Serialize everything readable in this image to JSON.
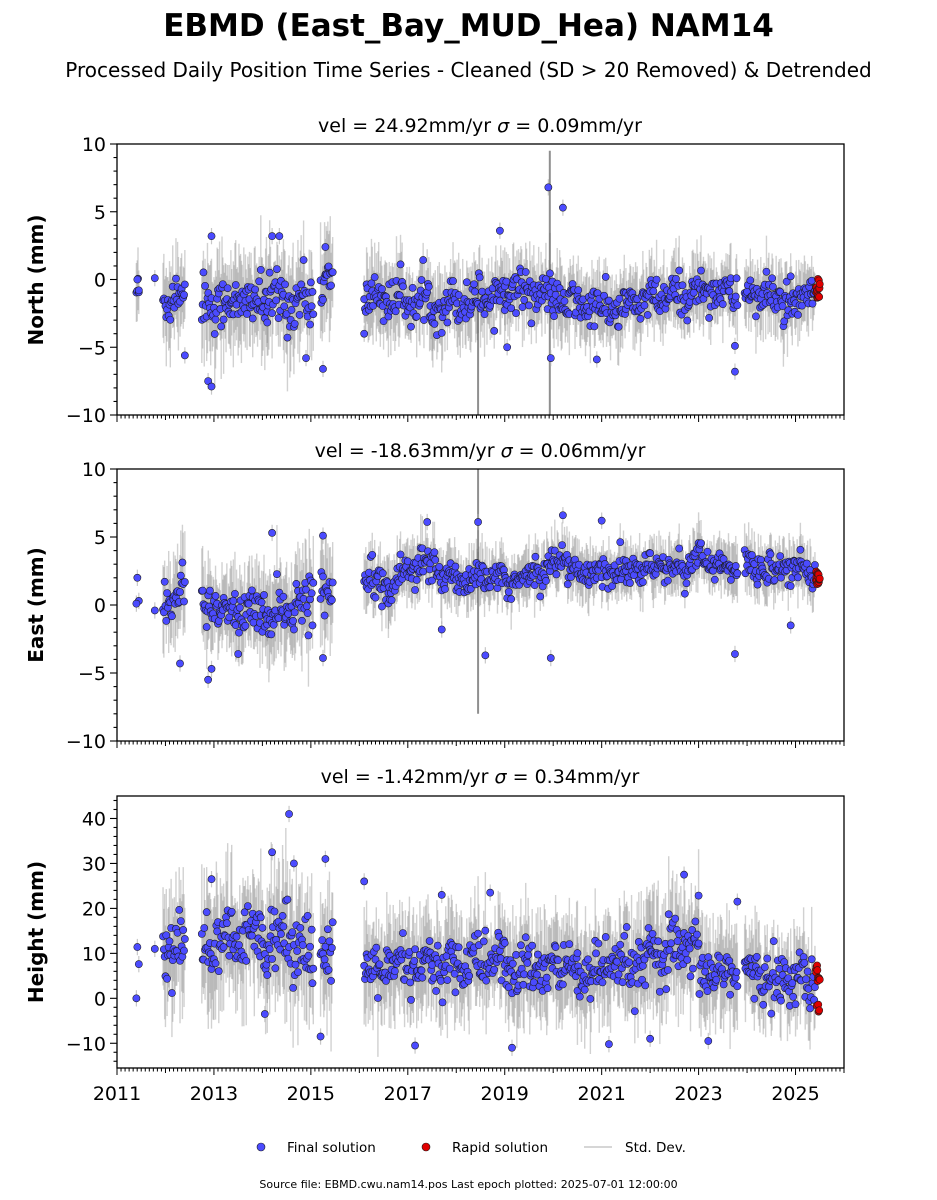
{
  "title": "EBMD (East_Bay_MUD_Hea) NAM14",
  "subtitle": "Processed Daily Position Time Series - Cleaned (SD > 20 Removed) & Detrended",
  "footer": "Source file: EBMD.cwu.nam14.pos  Last epoch plotted: 2025-07-01 12:00:00",
  "legend": {
    "final": "Final solution",
    "rapid": "Rapid solution",
    "sd": "Std. Dev."
  },
  "colors": {
    "final": "#4b4bff",
    "rapid": "#e00000",
    "sd": "#b0b0b0",
    "edge": "#1a1a1a"
  },
  "chart_data": [
    {
      "type": "scatter",
      "panel": "north",
      "title_lhs": "vel = 24.92mm/yr",
      "title_rhs": "= 0.09mm/yr",
      "sigma": "σ",
      "ylabel": "North (mm)",
      "xlim": [
        2011,
        2026
      ],
      "ylim": [
        -10,
        10
      ],
      "yticks": [
        -10,
        -5,
        0,
        5,
        10
      ],
      "ytick_labels": [
        "−10",
        "−5",
        "0",
        "5",
        "10"
      ],
      "xticks": [
        2011,
        2013,
        2015,
        2017,
        2019,
        2021,
        2023,
        2025
      ],
      "xtick_labels": [
        "2011",
        "2013",
        "2015",
        "2017",
        "2019",
        "2021",
        "2023",
        "2025"
      ],
      "segments": [
        {
          "x": [
            2011.4,
            2011.45
          ],
          "mean": [
            -0.7,
            -0.7
          ],
          "spread": 1.2
        },
        {
          "x": [
            2011.95,
            2012.4
          ],
          "mean": [
            -1.5,
            -1.0
          ],
          "spread": 1.6
        },
        {
          "x": [
            2012.75,
            2014.1
          ],
          "mean": [
            -1.8,
            -1.6
          ],
          "spread": 1.7
        },
        {
          "x": [
            2014.1,
            2015.05
          ],
          "mean": [
            -1.6,
            -1.5
          ],
          "spread": 1.8
        },
        {
          "x": [
            2015.2,
            2015.45
          ],
          "mean": [
            -0.4,
            -0.8
          ],
          "spread": 1.9
        },
        {
          "x": [
            2016.1,
            2017.5
          ],
          "mean": [
            -1.2,
            -1.8
          ],
          "spread": 1.4
        },
        {
          "x": [
            2017.5,
            2019.0
          ],
          "mean": [
            -2.0,
            -1.0
          ],
          "spread": 1.4
        },
        {
          "x": [
            2019.0,
            2020.0
          ],
          "mean": [
            -0.5,
            -1.2
          ],
          "spread": 1.3
        },
        {
          "x": [
            2020.0,
            2021.5
          ],
          "mean": [
            -1.6,
            -2.4
          ],
          "spread": 1.3
        },
        {
          "x": [
            2021.5,
            2023.1
          ],
          "mean": [
            -1.8,
            -0.9
          ],
          "spread": 1.3
        },
        {
          "x": [
            2023.1,
            2023.8
          ],
          "mean": [
            -0.6,
            -1.2
          ],
          "spread": 1.2
        },
        {
          "x": [
            2023.95,
            2024.9
          ],
          "mean": [
            -1.0,
            -1.6
          ],
          "spread": 1.3
        },
        {
          "x": [
            2024.9,
            2025.4
          ],
          "mean": [
            -2.4,
            -0.6
          ],
          "spread": 1.1
        }
      ],
      "outliers": [
        {
          "x": 2019.9,
          "y": 6.8
        },
        {
          "x": 2020.2,
          "y": 5.3
        },
        {
          "x": 2018.9,
          "y": 3.6
        },
        {
          "x": 2012.95,
          "y": 3.2
        },
        {
          "x": 2014.2,
          "y": 3.2
        },
        {
          "x": 2014.35,
          "y": 3.2
        },
        {
          "x": 2015.3,
          "y": 2.4
        },
        {
          "x": 2012.88,
          "y": -7.5
        },
        {
          "x": 2012.95,
          "y": -7.9
        },
        {
          "x": 2015.25,
          "y": -6.6
        },
        {
          "x": 2023.75,
          "y": -6.8
        },
        {
          "x": 2019.95,
          "y": -5.8
        },
        {
          "x": 2012.4,
          "y": -5.6
        },
        {
          "x": 2011.78,
          "y": 0.1
        },
        {
          "x": 2011.42,
          "y": 0.0
        },
        {
          "x": 2011.45,
          "y": -0.8
        },
        {
          "x": 2020.9,
          "y": -5.9
        },
        {
          "x": 2019.05,
          "y": -5.0
        },
        {
          "x": 2023.75,
          "y": -4.9
        },
        {
          "x": 2016.1,
          "y": -4.0
        },
        {
          "x": 2014.9,
          "y": -5.8
        }
      ],
      "rapid": {
        "x_start": 2025.42,
        "x_end": 2025.5,
        "y_min": -1.4,
        "y_max": 0.2
      },
      "gap_sd_spikes": [
        {
          "x": 2018.45,
          "low": -10,
          "high": 0.5
        },
        {
          "x": 2019.93,
          "low": -10,
          "high": 9.5
        }
      ]
    },
    {
      "type": "scatter",
      "panel": "east",
      "title_lhs": "vel = -18.63mm/yr",
      "title_rhs": "= 0.06mm/yr",
      "sigma": "σ",
      "ylabel": "East (mm)",
      "xlim": [
        2011,
        2026
      ],
      "ylim": [
        -10,
        10
      ],
      "yticks": [
        -10,
        -5,
        0,
        5,
        10
      ],
      "ytick_labels": [
        "−10",
        "−5",
        "0",
        "5",
        "10"
      ],
      "xticks": [
        2011,
        2013,
        2015,
        2017,
        2019,
        2021,
        2023,
        2025
      ],
      "xtick_labels": [
        "2011",
        "2013",
        "2015",
        "2017",
        "2019",
        "2021",
        "2023",
        "2025"
      ],
      "segments": [
        {
          "x": [
            2011.95,
            2012.4
          ],
          "mean": [
            -0.3,
            1.2
          ],
          "spread": 1.6
        },
        {
          "x": [
            2012.75,
            2014.1
          ],
          "mean": [
            -0.4,
            -0.6
          ],
          "spread": 1.4
        },
        {
          "x": [
            2014.1,
            2015.05
          ],
          "mean": [
            -0.8,
            0.4
          ],
          "spread": 1.6
        },
        {
          "x": [
            2015.2,
            2015.45
          ],
          "mean": [
            1.0,
            0.8
          ],
          "spread": 1.7
        },
        {
          "x": [
            2016.1,
            2016.6
          ],
          "mean": [
            2.5,
            1.6
          ],
          "spread": 1.1
        },
        {
          "x": [
            2016.6,
            2017.2
          ],
          "mean": [
            1.2,
            3.2
          ],
          "spread": 1.1
        },
        {
          "x": [
            2017.2,
            2018.0
          ],
          "mean": [
            3.0,
            2.0
          ],
          "spread": 1.1
        },
        {
          "x": [
            2018.0,
            2019.5
          ],
          "mean": [
            2.0,
            1.8
          ],
          "spread": 1.0
        },
        {
          "x": [
            2019.5,
            2020.3
          ],
          "mean": [
            2.2,
            3.6
          ],
          "spread": 1.0
        },
        {
          "x": [
            2020.3,
            2021.5
          ],
          "mean": [
            2.4,
            2.6
          ],
          "spread": 1.0
        },
        {
          "x": [
            2021.5,
            2022.8
          ],
          "mean": [
            2.6,
            2.8
          ],
          "spread": 1.0
        },
        {
          "x": [
            2022.8,
            2023.8
          ],
          "mean": [
            3.6,
            2.4
          ],
          "spread": 1.0
        },
        {
          "x": [
            2023.95,
            2025.4
          ],
          "mean": [
            2.8,
            2.6
          ],
          "spread": 1.0
        }
      ],
      "outliers": [
        {
          "x": 2020.2,
          "y": 6.6
        },
        {
          "x": 2021.0,
          "y": 6.2
        },
        {
          "x": 2018.45,
          "y": 6.1
        },
        {
          "x": 2017.4,
          "y": 6.1
        },
        {
          "x": 2014.2,
          "y": 5.3
        },
        {
          "x": 2015.25,
          "y": 5.1
        },
        {
          "x": 2011.42,
          "y": 2.0
        },
        {
          "x": 2011.45,
          "y": 0.3
        },
        {
          "x": 2011.4,
          "y": 0.1
        },
        {
          "x": 2011.78,
          "y": -0.4
        },
        {
          "x": 2012.88,
          "y": -5.5
        },
        {
          "x": 2012.95,
          "y": -4.7
        },
        {
          "x": 2012.3,
          "y": -4.3
        },
        {
          "x": 2018.6,
          "y": -3.7
        },
        {
          "x": 2019.95,
          "y": -3.9
        },
        {
          "x": 2023.75,
          "y": -3.6
        },
        {
          "x": 2015.25,
          "y": -3.9
        },
        {
          "x": 2017.7,
          "y": -1.8
        },
        {
          "x": 2024.9,
          "y": -1.5
        },
        {
          "x": 2013.5,
          "y": -3.6
        }
      ],
      "rapid": {
        "x_start": 2025.42,
        "x_end": 2025.5,
        "y_min": 1.5,
        "y_max": 2.5
      },
      "gap_sd_spikes": [
        {
          "x": 2018.45,
          "low": -8,
          "high": 10
        }
      ]
    },
    {
      "type": "scatter",
      "panel": "height",
      "title_lhs": "vel = -1.42mm/yr",
      "title_rhs": "= 0.34mm/yr",
      "sigma": "σ",
      "ylabel": "Height (mm)",
      "xlim": [
        2011,
        2026
      ],
      "ylim": [
        -15.5,
        45
      ],
      "yticks": [
        -10,
        0,
        10,
        20,
        30,
        40
      ],
      "ytick_labels": [
        "−10",
        "0",
        "10",
        "20",
        "30",
        "40"
      ],
      "xticks": [
        2011,
        2013,
        2015,
        2017,
        2019,
        2021,
        2023,
        2025
      ],
      "xtick_labels": [
        "2011",
        "2013",
        "2015",
        "2017",
        "2019",
        "2021",
        "2023",
        "2025"
      ],
      "segments": [
        {
          "x": [
            2011.95,
            2012.4
          ],
          "mean": [
            12.0,
            10.0
          ],
          "spread": 6.0
        },
        {
          "x": [
            2012.75,
            2014.1
          ],
          "mean": [
            11.0,
            14.0
          ],
          "spread": 6.5
        },
        {
          "x": [
            2014.1,
            2015.05
          ],
          "mean": [
            15.0,
            11.0
          ],
          "spread": 7.0
        },
        {
          "x": [
            2015.2,
            2015.45
          ],
          "mean": [
            9.0,
            6.0
          ],
          "spread": 7.0
        },
        {
          "x": [
            2016.1,
            2017.5
          ],
          "mean": [
            6.0,
            7.0
          ],
          "spread": 5.5
        },
        {
          "x": [
            2017.5,
            2019.0
          ],
          "mean": [
            7.0,
            9.0
          ],
          "spread": 5.5
        },
        {
          "x": [
            2019.0,
            2020.5
          ],
          "mean": [
            6.0,
            7.0
          ],
          "spread": 5.5
        },
        {
          "x": [
            2020.5,
            2022.0
          ],
          "mean": [
            5.0,
            8.0
          ],
          "spread": 5.5
        },
        {
          "x": [
            2022.0,
            2023.0
          ],
          "mean": [
            9.0,
            11.0
          ],
          "spread": 6.0
        },
        {
          "x": [
            2023.0,
            2023.8
          ],
          "mean": [
            6.0,
            6.0
          ],
          "spread": 5.5
        },
        {
          "x": [
            2023.95,
            2025.4
          ],
          "mean": [
            5.0,
            4.0
          ],
          "spread": 5.0
        }
      ],
      "outliers": [
        {
          "x": 2014.55,
          "y": 41.0
        },
        {
          "x": 2014.2,
          "y": 32.5
        },
        {
          "x": 2014.65,
          "y": 30.0
        },
        {
          "x": 2015.3,
          "y": 31.0
        },
        {
          "x": 2022.7,
          "y": 27.5
        },
        {
          "x": 2012.95,
          "y": 26.5
        },
        {
          "x": 2016.1,
          "y": 26.0
        },
        {
          "x": 2011.42,
          "y": 11.4
        },
        {
          "x": 2011.45,
          "y": 7.6
        },
        {
          "x": 2011.4,
          "y": 0.0
        },
        {
          "x": 2011.78,
          "y": 11.0
        },
        {
          "x": 2015.2,
          "y": -8.5
        },
        {
          "x": 2019.15,
          "y": -11.0
        },
        {
          "x": 2017.15,
          "y": -10.5
        },
        {
          "x": 2021.15,
          "y": -10.2
        },
        {
          "x": 2023.2,
          "y": -9.5
        },
        {
          "x": 2022.0,
          "y": -9.0
        },
        {
          "x": 2014.05,
          "y": -3.5
        },
        {
          "x": 2018.7,
          "y": 23.5
        },
        {
          "x": 2017.7,
          "y": 23.0
        },
        {
          "x": 2023.8,
          "y": 21.5
        }
      ],
      "rapid": {
        "x_start": 2025.42,
        "x_end": 2025.5,
        "y_min": -3.5,
        "y_max": 8.0
      },
      "gap_sd_spikes": []
    }
  ]
}
